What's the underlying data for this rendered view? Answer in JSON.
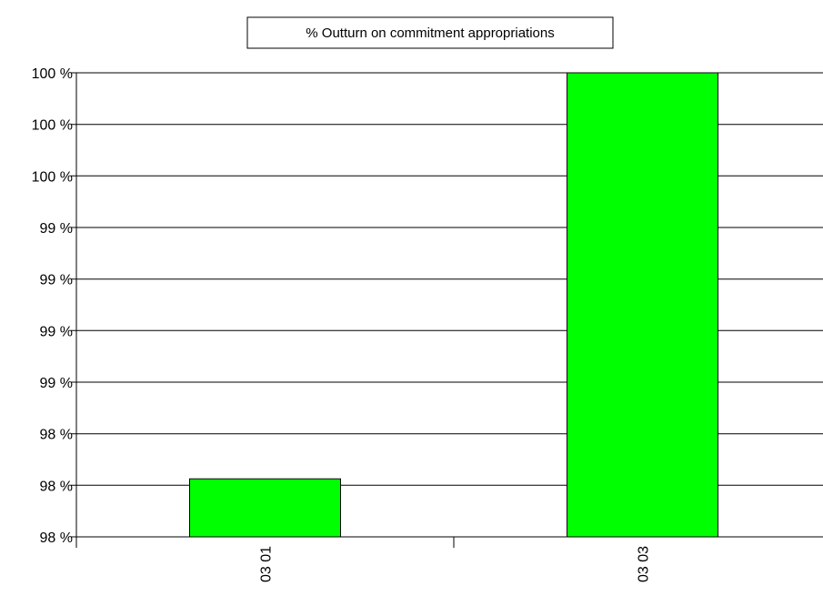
{
  "chart_data": {
    "type": "bar",
    "legend": {
      "label": "% Outturn on commitment appropriations",
      "placement": "top-center"
    },
    "categories": [
      "03 01",
      "03 03"
    ],
    "series": [
      {
        "name": "% Outturn on commitment appropriations",
        "values": [
          97.9,
          100.0
        ]
      }
    ],
    "ylim": [
      97.6,
      100.0
    ],
    "yticks": [
      97.6,
      97.867,
      98.133,
      98.4,
      98.667,
      98.933,
      99.2,
      99.467,
      99.733,
      100.0
    ],
    "ytick_labels": [
      "98 %",
      "98 %",
      "98 %",
      "99 %",
      "99 %",
      "99 %",
      "99 %",
      "100 %",
      "100 %",
      "100 %"
    ],
    "grid": true,
    "colors": {
      "bar": "#00ff00",
      "bar_stroke": "#000000",
      "grid": "#000000"
    }
  }
}
